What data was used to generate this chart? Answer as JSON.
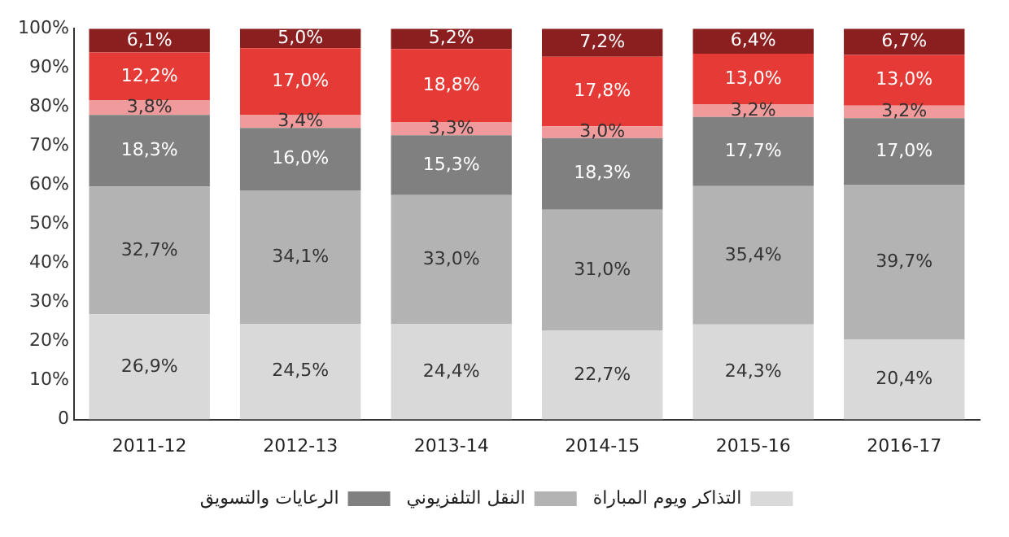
{
  "chart_data": {
    "type": "bar",
    "stacked": true,
    "categories": [
      "2011-12",
      "2012-13",
      "2013-14",
      "2014-15",
      "2015-16",
      "2016-17"
    ],
    "ylim": [
      0,
      100
    ],
    "yticks": [
      {
        "value": 0,
        "label": "0"
      },
      {
        "value": 10,
        "label": "10%"
      },
      {
        "value": 20,
        "label": "20%"
      },
      {
        "value": 30,
        "label": "30%"
      },
      {
        "value": 40,
        "label": "40%"
      },
      {
        "value": 50,
        "label": "50%"
      },
      {
        "value": 60,
        "label": "60%"
      },
      {
        "value": 70,
        "label": "70%"
      },
      {
        "value": 80,
        "label": "80%"
      },
      {
        "value": 90,
        "label": "90%"
      },
      {
        "value": 100,
        "label": "100%"
      }
    ],
    "grid": false,
    "legend": "bottom",
    "series": [
      {
        "name": "التذاكر ويوم المباراة",
        "color": "#d9d9d9",
        "values": [
          26.9,
          24.5,
          24.4,
          22.7,
          24.3,
          20.4
        ],
        "value_labels": [
          "26,9%",
          "24,5%",
          "24,4%",
          "22,7%",
          "24,3%",
          "20,4%"
        ]
      },
      {
        "name": "النقل التلفزيوني",
        "color": "#b3b3b3",
        "values": [
          32.7,
          34.1,
          33.0,
          31.0,
          35.4,
          39.7
        ],
        "value_labels": [
          "32,7%",
          "34,1%",
          "33,0%",
          "31,0%",
          "35,4%",
          "39,7%"
        ]
      },
      {
        "name": "الرعايات والتسويق",
        "color": "#808080",
        "values": [
          18.3,
          16.0,
          15.3,
          18.3,
          17.7,
          17.0
        ],
        "value_labels": [
          "18,3%",
          "16,0%",
          "15,3%",
          "18,3%",
          "17,7%",
          "17,0%"
        ]
      },
      {
        "color": "#f09a9b",
        "values": [
          3.8,
          3.4,
          3.3,
          3.0,
          3.2,
          3.2
        ],
        "value_labels": [
          "3,8%",
          "3,4%",
          "3,3%",
          "3,0%",
          "3,2%",
          "3,2%"
        ]
      },
      {
        "color": "#e53a35",
        "values": [
          12.2,
          17.0,
          18.8,
          17.8,
          13.0,
          13.0
        ],
        "value_labels": [
          "12,2%",
          "17,0%",
          "18,8%",
          "17,8%",
          "13,0%",
          "13,0%"
        ]
      },
      {
        "color": "#8b1f1f",
        "values": [
          6.1,
          5.0,
          5.2,
          7.2,
          6.4,
          6.7
        ],
        "value_labels": [
          "6,1%",
          "5,0%",
          "5,2%",
          "7,2%",
          "6,4%",
          "6,7%"
        ]
      }
    ]
  }
}
